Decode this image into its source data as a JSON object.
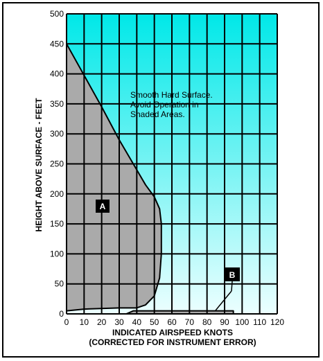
{
  "chart_data": {
    "type": "area",
    "title": "",
    "ylabel": "HEIGHT ABOVE SURFACE - FEET",
    "xlabel_line1": "INDICATED AIRSPEED KNOTS",
    "xlabel_line2": "(CORRECTED FOR INSTRUMENT ERROR)",
    "xlim": [
      0,
      120
    ],
    "ylim": [
      0,
      500
    ],
    "x_ticks": [
      0,
      10,
      20,
      30,
      40,
      50,
      60,
      70,
      80,
      90,
      100,
      110,
      120
    ],
    "y_ticks": [
      0,
      50,
      100,
      150,
      200,
      250,
      300,
      350,
      400,
      450,
      500
    ],
    "grid": true,
    "annotation": {
      "lines": [
        "Smooth Hard Surface.",
        "Avoid Operation in",
        "Shaded Areas."
      ]
    },
    "regions": [
      {
        "name": "A",
        "points": [
          [
            0,
            450
          ],
          [
            20,
            345
          ],
          [
            30,
            290
          ],
          [
            40,
            240
          ],
          [
            45,
            215
          ],
          [
            50,
            195
          ],
          [
            53,
            175
          ],
          [
            54,
            150
          ],
          [
            54,
            100
          ],
          [
            53,
            60
          ],
          [
            50,
            30
          ],
          [
            45,
            15
          ],
          [
            40,
            10
          ],
          [
            30,
            10
          ],
          [
            10,
            8
          ],
          [
            0,
            5
          ]
        ]
      },
      {
        "name": "B",
        "points": [
          [
            34,
            0
          ],
          [
            38,
            5
          ],
          [
            95,
            5
          ],
          [
            95,
            0
          ]
        ]
      }
    ],
    "colors": {
      "sky_top": "#00e8e8",
      "sky_bottom": "#ecffff",
      "shade": "#aaaaaa",
      "grid": "#000000"
    }
  }
}
